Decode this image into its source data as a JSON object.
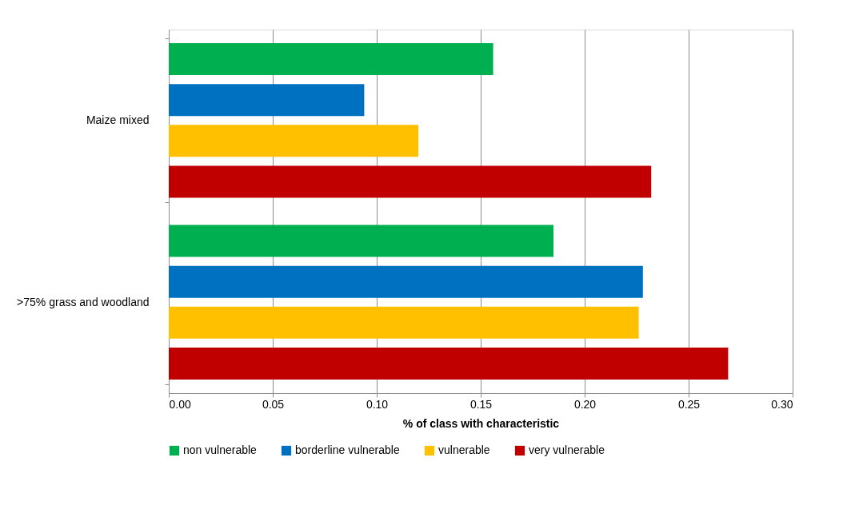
{
  "chart_data": {
    "type": "bar",
    "orientation": "horizontal",
    "xlabel": "% of class with characteristic",
    "categories": [
      "Maize mixed",
      ">75% grass and woodland"
    ],
    "series": [
      {
        "name": "non vulnerable",
        "color": "#00b050",
        "values": [
          0.156,
          0.185
        ]
      },
      {
        "name": "borderline vulnerable",
        "color": "#0070c0",
        "values": [
          0.094,
          0.228
        ]
      },
      {
        "name": "vulnerable",
        "color": "#ffc000",
        "values": [
          0.12,
          0.226
        ]
      },
      {
        "name": "very vulnerable",
        "color": "#c00000",
        "values": [
          0.232,
          0.269
        ]
      }
    ],
    "xlim": [
      0,
      0.3
    ],
    "xticks": [
      {
        "value": 0,
        "label": "0.00"
      },
      {
        "value": 0.05,
        "label": "0.05"
      },
      {
        "value": 0.1,
        "label": "0.10"
      },
      {
        "value": 0.15,
        "label": "0.15"
      },
      {
        "value": 0.2,
        "label": "0.20"
      },
      {
        "value": 0.25,
        "label": "0.25"
      },
      {
        "value": 0.3,
        "label": "0.30"
      }
    ],
    "grid": "x",
    "legend": "bottom"
  }
}
